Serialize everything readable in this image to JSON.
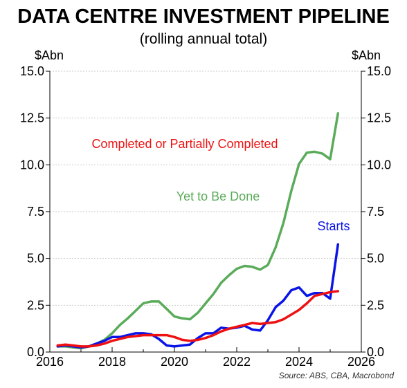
{
  "chart_data": {
    "type": "line",
    "title": "DATA CENTRE INVESTMENT PIPELINE",
    "subtitle": "(rolling annual total)",
    "ylabel_left": "$Abn",
    "ylabel_right": "$Abn",
    "source": "Source: ABS, CBA, Macrobond",
    "xlim": [
      2016,
      2026
    ],
    "ylim": [
      0,
      15
    ],
    "x_ticks": [
      "2016",
      "2018",
      "2020",
      "2022",
      "2024",
      "2026"
    ],
    "y_ticks": [
      "0.0",
      "2.5",
      "5.0",
      "7.5",
      "10.0",
      "12.5",
      "15.0"
    ],
    "grid": true,
    "x": [
      2016.25,
      2016.5,
      2016.75,
      2017.0,
      2017.25,
      2017.5,
      2017.75,
      2018.0,
      2018.25,
      2018.5,
      2018.75,
      2019.0,
      2019.25,
      2019.5,
      2019.75,
      2020.0,
      2020.25,
      2020.5,
      2020.75,
      2021.0,
      2021.25,
      2021.5,
      2021.75,
      2022.0,
      2022.25,
      2022.5,
      2022.75,
      2023.0,
      2023.25,
      2023.5,
      2023.75,
      2024.0,
      2024.25,
      2024.5,
      2024.75,
      2025.0,
      2025.25
    ],
    "series": [
      {
        "name": "Yet to Be Done",
        "color": "#5aab5a",
        "values": [
          0.3,
          0.3,
          0.25,
          0.2,
          0.3,
          0.45,
          0.65,
          1.0,
          1.45,
          1.8,
          2.2,
          2.6,
          2.7,
          2.7,
          2.3,
          1.9,
          1.8,
          1.75,
          2.1,
          2.6,
          3.1,
          3.7,
          4.1,
          4.45,
          4.6,
          4.55,
          4.4,
          4.65,
          5.6,
          6.9,
          8.6,
          10.05,
          10.65,
          10.7,
          10.6,
          10.3,
          12.75
        ]
      },
      {
        "name": "Starts",
        "color": "#0a14e6",
        "values": [
          0.3,
          0.35,
          0.3,
          0.25,
          0.3,
          0.45,
          0.6,
          0.8,
          0.8,
          0.9,
          1.0,
          1.0,
          0.95,
          0.7,
          0.35,
          0.3,
          0.35,
          0.4,
          0.75,
          1.0,
          1.0,
          1.3,
          1.25,
          1.3,
          1.4,
          1.2,
          1.15,
          1.7,
          2.4,
          2.75,
          3.3,
          3.45,
          3.0,
          3.15,
          3.15,
          2.85,
          5.75
        ]
      },
      {
        "name": "Completed or Partially Completed",
        "color": "#ee1111",
        "values": [
          0.35,
          0.4,
          0.35,
          0.3,
          0.3,
          0.35,
          0.45,
          0.6,
          0.7,
          0.8,
          0.85,
          0.9,
          0.9,
          0.9,
          0.9,
          0.8,
          0.65,
          0.6,
          0.65,
          0.75,
          0.9,
          1.1,
          1.25,
          1.35,
          1.45,
          1.55,
          1.5,
          1.55,
          1.6,
          1.75,
          2.0,
          2.25,
          2.6,
          3.0,
          3.1,
          3.2,
          3.25
        ]
      }
    ]
  }
}
